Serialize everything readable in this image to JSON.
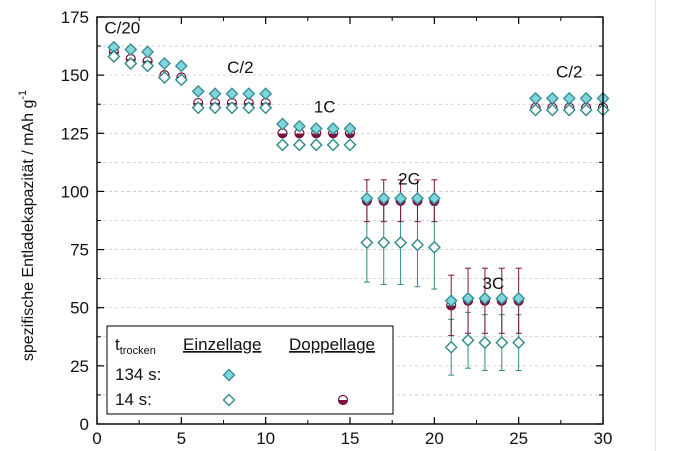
{
  "chart_data": {
    "type": "scatter",
    "title": "",
    "xlabel": "",
    "ylabel": "spezifische Entladekapazität / mAh g",
    "ylabel_superscript": "-1",
    "xlim": [
      0,
      30
    ],
    "ylim": [
      0,
      175
    ],
    "xticks": [
      "0",
      "5",
      "10",
      "15",
      "20",
      "25",
      "30"
    ],
    "yticks": [
      "0",
      "25",
      "50",
      "75",
      "100",
      "125",
      "150",
      "175"
    ],
    "grid": "dashed horizontal",
    "legend_placement": "bottom-left",
    "rate_labels": [
      {
        "text": "C/20",
        "x": 1.5,
        "y": 168
      },
      {
        "text": "C/2",
        "x": 8.5,
        "y": 151
      },
      {
        "text": "1C",
        "x": 13.5,
        "y": 134
      },
      {
        "text": "2C",
        "x": 18.5,
        "y": 103
      },
      {
        "text": "3C",
        "x": 23.5,
        "y": 58
      },
      {
        "text": "C/2",
        "x": 28,
        "y": 149
      }
    ],
    "legend": {
      "title_main": "t",
      "title_sub": "trocken",
      "col1": "Einzellage",
      "col2": "Doppellage",
      "row1": "134 s:",
      "row2": "14 s:"
    },
    "series": [
      {
        "name": "134 s Einzellage",
        "marker": "diamond-filled",
        "color": "#7fd6dc",
        "x": [
          1,
          2,
          3,
          4,
          5,
          6,
          7,
          8,
          9,
          10,
          11,
          12,
          13,
          14,
          15,
          16,
          17,
          18,
          19,
          20,
          21,
          22,
          23,
          24,
          25,
          26,
          27,
          28,
          29,
          30
        ],
        "y": [
          162,
          161,
          160,
          155,
          154,
          143,
          142,
          142,
          142,
          142,
          129,
          128,
          127,
          127,
          127,
          97,
          97,
          97,
          97,
          97,
          53,
          54,
          54,
          54,
          54,
          140,
          140,
          140,
          140,
          140
        ],
        "err": [
          0,
          0,
          0,
          0,
          0,
          0,
          0,
          0,
          0,
          0,
          0,
          0,
          0,
          0,
          0,
          0,
          0,
          0,
          0,
          0,
          0,
          0,
          0,
          0,
          0,
          0,
          0,
          0,
          0,
          0
        ]
      },
      {
        "name": "14 s Einzellage",
        "marker": "diamond-open",
        "color": "#2e8a8a",
        "x": [
          1,
          2,
          3,
          4,
          5,
          6,
          7,
          8,
          9,
          10,
          11,
          12,
          13,
          14,
          15,
          16,
          17,
          18,
          19,
          20,
          21,
          22,
          23,
          24,
          25,
          26,
          27,
          28,
          29,
          30
        ],
        "y": [
          158,
          155,
          154,
          149,
          148,
          136,
          136,
          136,
          136,
          136,
          120,
          120,
          120,
          120,
          120,
          78,
          78,
          78,
          77,
          76,
          33,
          36,
          35,
          35,
          35,
          135,
          135,
          135,
          135,
          135
        ],
        "err": [
          1,
          1,
          1,
          1,
          1,
          1,
          1,
          1,
          1,
          1,
          2,
          2,
          2,
          2,
          2,
          17,
          18,
          18,
          18,
          18,
          12,
          12,
          12,
          12,
          12,
          1,
          1,
          1,
          1,
          1
        ]
      },
      {
        "name": "14 s Doppellage",
        "marker": "circle-half",
        "color": "#7a1040",
        "x": [
          1,
          2,
          3,
          4,
          5,
          6,
          7,
          8,
          9,
          10,
          11,
          12,
          13,
          14,
          15,
          16,
          17,
          18,
          19,
          20,
          21,
          22,
          23,
          24,
          25,
          26,
          27,
          28,
          29,
          30
        ],
        "y": [
          160,
          157,
          156,
          150,
          149,
          138,
          138,
          138,
          138,
          138,
          125,
          125,
          125,
          125,
          125,
          96,
          96,
          96,
          96,
          96,
          51,
          53,
          53,
          53,
          53,
          136,
          136,
          136,
          136,
          136
        ],
        "err": [
          1,
          1,
          1,
          1,
          1,
          1,
          1,
          1,
          1,
          1,
          1,
          1,
          1,
          1,
          1,
          9,
          9,
          9,
          9,
          9,
          13,
          14,
          14,
          14,
          14,
          1,
          1,
          1,
          1,
          1
        ]
      }
    ]
  }
}
